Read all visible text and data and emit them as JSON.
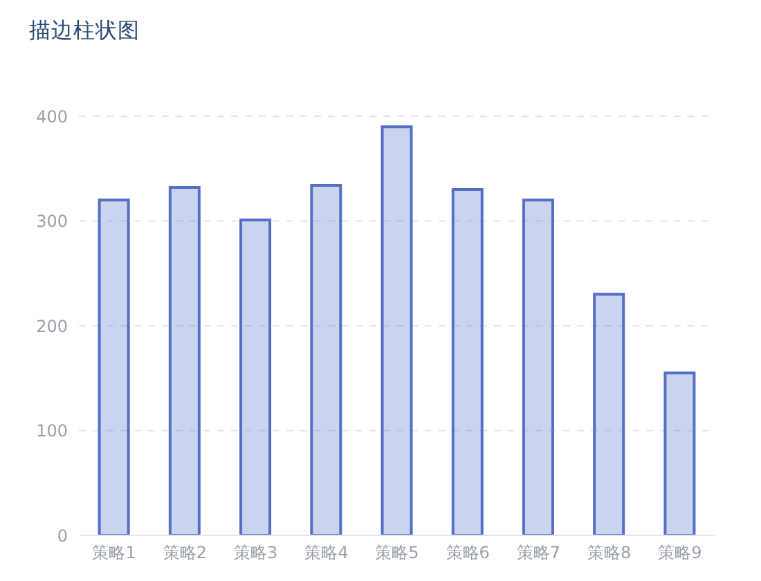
{
  "chart_data": {
    "type": "bar",
    "title": "描边柱状图",
    "categories": [
      "策略1",
      "策略2",
      "策略3",
      "策略4",
      "策略5",
      "策略6",
      "策略7",
      "策略8",
      "策略9"
    ],
    "values": [
      320,
      332,
      301,
      334,
      390,
      330,
      320,
      230,
      155
    ],
    "color": "#5470c6",
    "ylim": [
      0,
      400
    ],
    "yticks": [
      0,
      100,
      200,
      300,
      400
    ],
    "grid": "y"
  }
}
